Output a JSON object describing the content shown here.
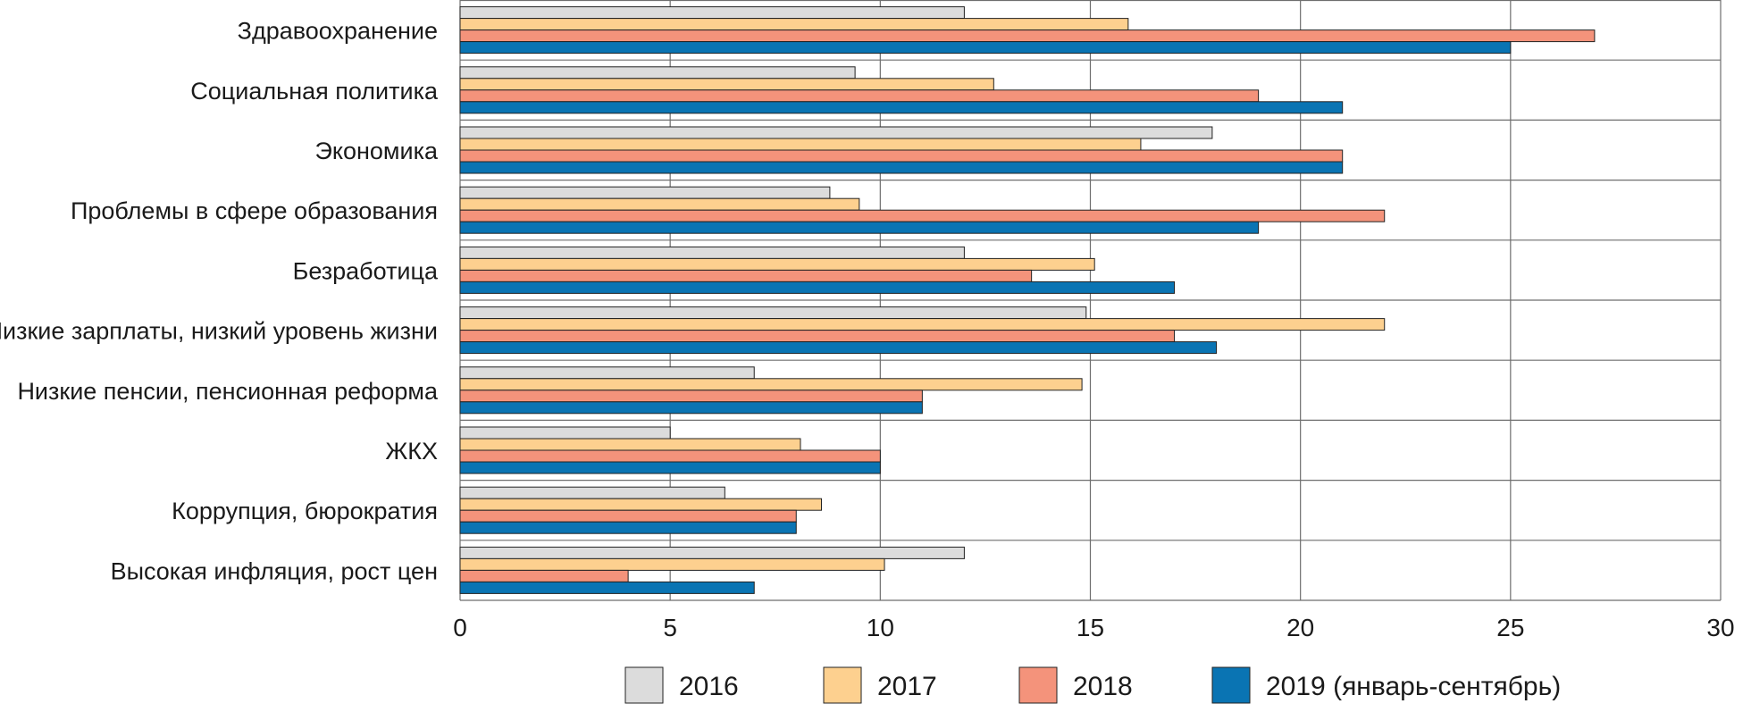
{
  "chart_data": {
    "type": "bar",
    "orientation": "horizontal",
    "categories": [
      "Здравоохранение",
      "Социальная политика",
      "Экономика",
      "Проблемы в сфере образования",
      "Безработица",
      "Низкие зарплаты, низкий уровень жизни",
      "Низкие пенсии, пенсионная реформа",
      "ЖКХ",
      "Коррупция, бюрократия",
      "Высокая инфляция, рост цен"
    ],
    "series": [
      {
        "name": "2016",
        "color": "#dcdcdc",
        "values": [
          12,
          9.4,
          17.9,
          8.8,
          12,
          14.9,
          7,
          5,
          6.3,
          12
        ]
      },
      {
        "name": "2017",
        "color": "#fdd08f",
        "values": [
          15.9,
          12.7,
          16.2,
          9.5,
          15.1,
          22,
          14.8,
          8.1,
          8.6,
          10.1
        ]
      },
      {
        "name": "2018",
        "color": "#f4937b",
        "values": [
          27,
          19,
          21,
          22,
          13.6,
          17,
          11,
          10,
          8,
          4
        ]
      },
      {
        "name": "2019 (январь-сентябрь)",
        "color": "#0a74b3",
        "values": [
          25,
          21,
          21,
          19,
          17,
          18,
          11,
          10,
          8,
          7
        ]
      }
    ],
    "xlim": [
      0,
      30
    ],
    "xticks": [
      0,
      5,
      10,
      15,
      20,
      25,
      30
    ],
    "grid": true,
    "legend_position": "bottom"
  }
}
